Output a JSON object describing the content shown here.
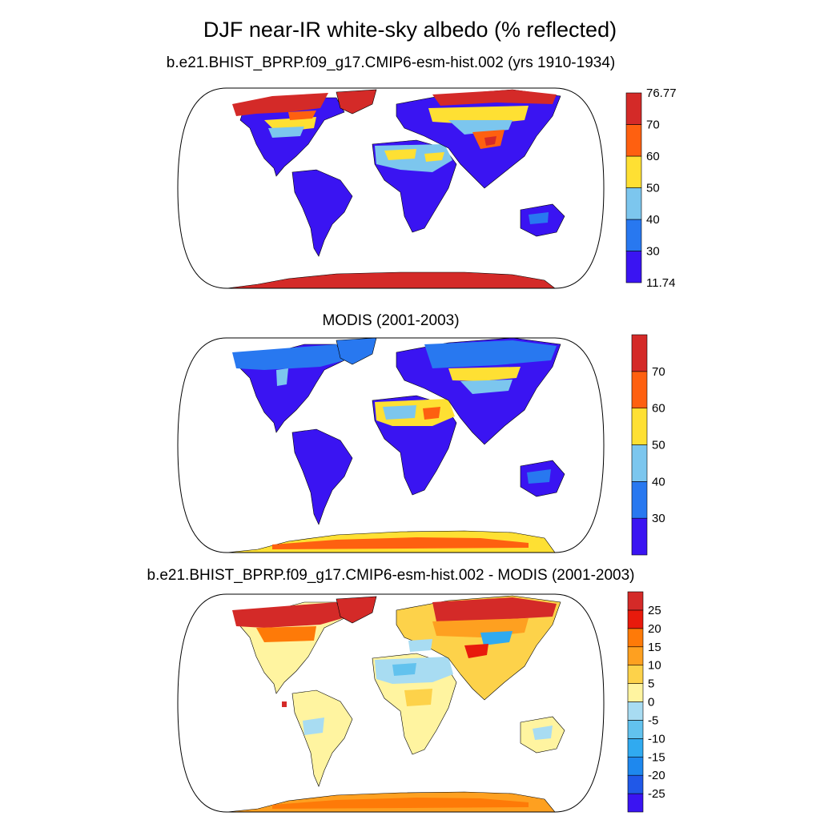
{
  "title": "DJF near-IR white-sky albedo (% reflected)",
  "panels": [
    {
      "subtitle": "b.e21.BHIST_BPRP.f09_g17.CMIP6-esm-hist.002 (yrs 1910-1934)",
      "colorbar": {
        "colors": [
          "#3a14f2",
          "#2878f0",
          "#7cc6ee",
          "#fee033",
          "#fe6010",
          "#d42a28"
        ],
        "labels": [
          "76.77",
          "70",
          "60",
          "50",
          "40",
          "30",
          "11.74"
        ]
      }
    },
    {
      "subtitle": "MODIS (2001-2003)",
      "colorbar": {
        "colors": [
          "#3a14f2",
          "#2878f0",
          "#7cc6ee",
          "#fee033",
          "#fe6010",
          "#d42a28"
        ],
        "labels": [
          "70",
          "60",
          "50",
          "40",
          "30"
        ]
      }
    },
    {
      "subtitle": "b.e21.BHIST_BPRP.f09_g17.CMIP6-esm-hist.002 - MODIS (2001-2003)",
      "colorbar": {
        "colors": [
          "#3a14f2",
          "#2058e8",
          "#1e88ee",
          "#30aaf0",
          "#62c2ee",
          "#a8dcf2",
          "#fff4a0",
          "#fdd24a",
          "#fea020",
          "#fe7a08",
          "#e81a0c",
          "#d42a28"
        ],
        "labels": [
          "25",
          "20",
          "15",
          "10",
          "5",
          "0",
          "-5",
          "-10",
          "-15",
          "-20",
          "-25"
        ]
      }
    }
  ]
}
